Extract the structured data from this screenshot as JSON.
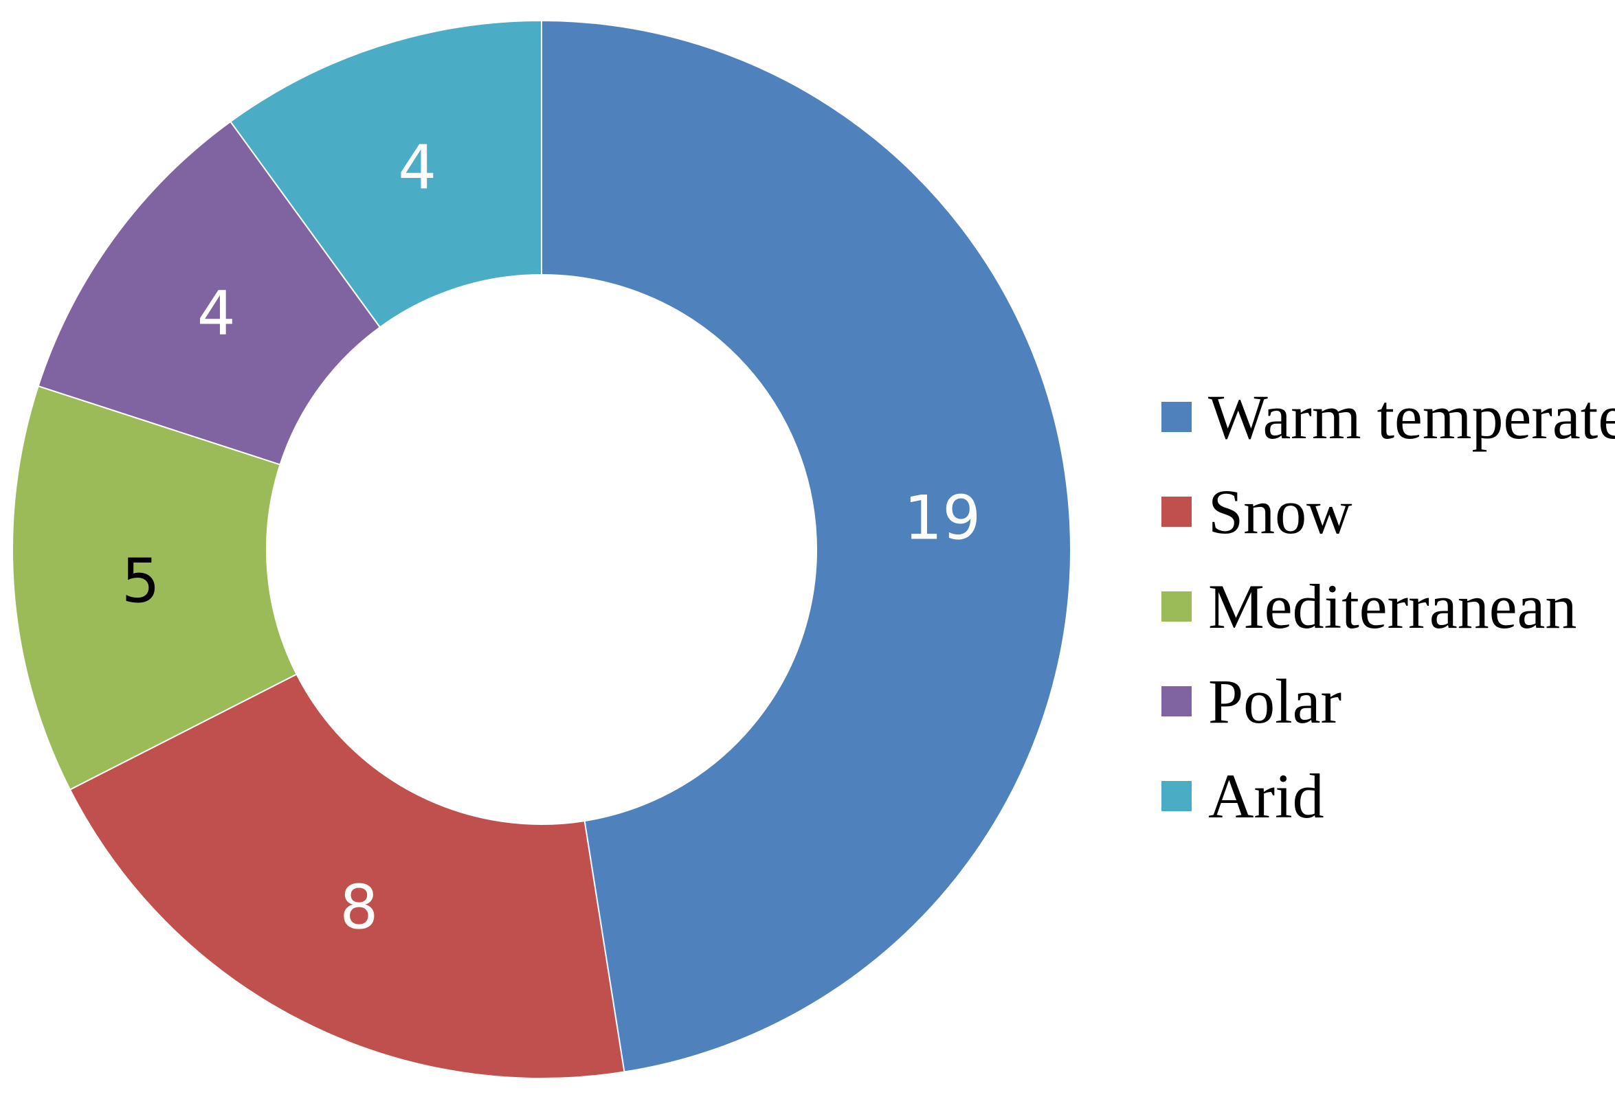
{
  "chart_data": {
    "type": "pie",
    "variant": "donut",
    "categories": [
      "Warm temperate",
      "Snow",
      "Mediterranean",
      "Polar",
      "Arid"
    ],
    "values": [
      19,
      8,
      5,
      4,
      4
    ],
    "colors": [
      "#4f81bd",
      "#c0504d",
      "#9bbb59",
      "#8064a2",
      "#4bacc6"
    ],
    "label_colors": [
      "#ffffff",
      "#ffffff",
      "#000000",
      "#ffffff",
      "#ffffff"
    ],
    "start_angle_deg": 0,
    "direction": "clockwise",
    "legend_position": "right",
    "title": ""
  }
}
